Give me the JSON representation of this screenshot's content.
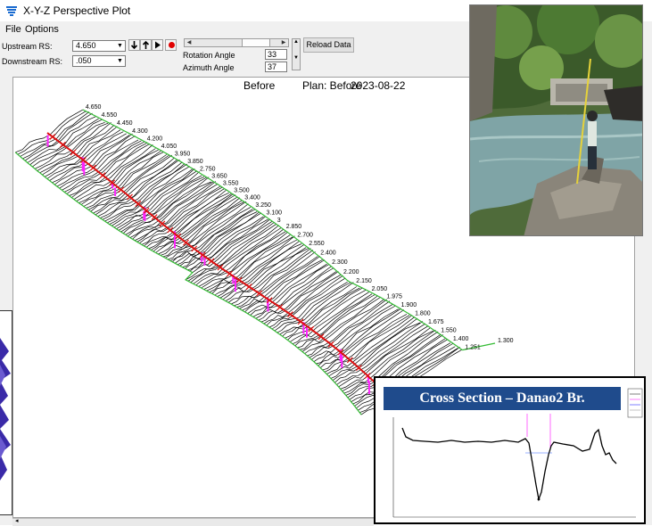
{
  "window": {
    "title": "X-Y-Z Perspective Plot"
  },
  "menu": [
    "File",
    "Options"
  ],
  "controls": {
    "upstream_label": "Upstream RS:",
    "upstream_value": "4.650",
    "downstream_label": "Downstream RS:",
    "downstream_value": ".050",
    "rotation_label": "Rotation Angle",
    "rotation_value": "33",
    "azimuth_label": "Azimuth Angle",
    "azimuth_value": "37",
    "reload_label": "Reload Data"
  },
  "toolbar_icons": [
    "arrow-down-icon",
    "arrow-up-icon",
    "play-icon",
    "record-icon"
  ],
  "plot": {
    "header_left": "Before",
    "header_plan": "Plan: Before",
    "header_date": "2023-08-22",
    "river_stations": [
      "4.650",
      "4.550",
      "4.450",
      "4.300",
      "4.200",
      "4.050",
      "3.950",
      "3.850",
      "2.750",
      "3.650",
      "3.550",
      "3.500",
      "3.400",
      "3.250",
      "3.100",
      "3",
      "2.850",
      "2.700",
      "2.550",
      "2.400",
      "2.300",
      "2.200",
      "2.150",
      "2.050",
      "1.975",
      "1.900",
      "1.800",
      "1.675",
      "1.550",
      "1.400",
      "1.251",
      "1.300"
    ]
  },
  "colors": {
    "bank": "#33bb33",
    "thalweg": "#dd1111",
    "levee": "#ff22ff",
    "title_bg": "#1f4b8c"
  },
  "cross_section": {
    "title": "Cross Section – Danao2 Br."
  }
}
